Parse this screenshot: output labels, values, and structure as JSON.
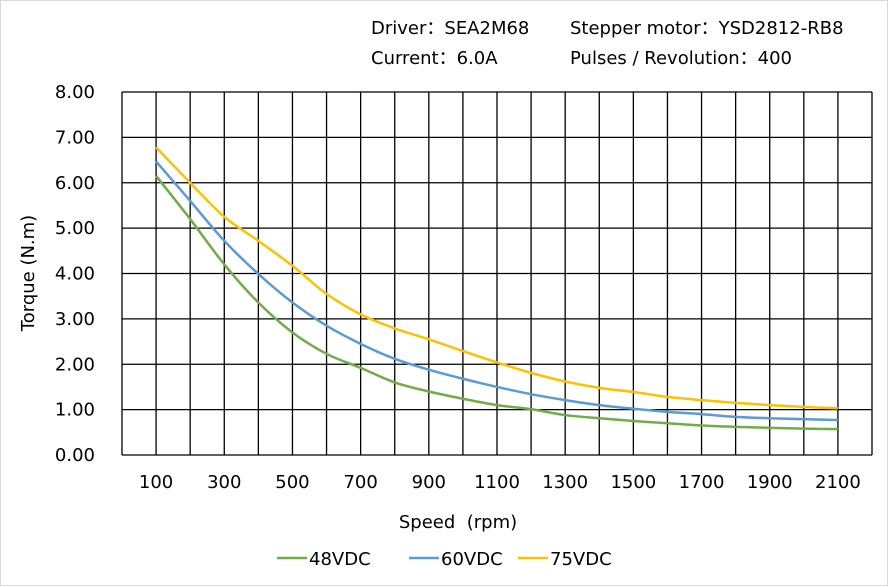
{
  "header": {
    "driver": "Driver：SEA2M68",
    "motor": "Stepper motor：YSD2812-RB8",
    "current": "Current：6.0A",
    "pulses": "Pulses / Revolution：400"
  },
  "chart_data": {
    "type": "line",
    "title": "",
    "xlabel": "Speed  (rpm)",
    "ylabel": "Torque (N.m)",
    "xlim": [
      0,
      2200
    ],
    "ylim": [
      0,
      8
    ],
    "grid": true,
    "legend_position": "bottom",
    "x_ticks": [
      "100",
      "300",
      "500",
      "700",
      "900",
      "1100",
      "1300",
      "1500",
      "1700",
      "1900",
      "2100"
    ],
    "y_ticks": [
      "0.00",
      "1.00",
      "2.00",
      "3.00",
      "4.00",
      "5.00",
      "6.00",
      "7.00",
      "8.00"
    ],
    "x": [
      100,
      200,
      300,
      400,
      500,
      600,
      700,
      800,
      900,
      1000,
      1100,
      1200,
      1300,
      1400,
      1500,
      1600,
      1700,
      1800,
      1900,
      2000,
      2100
    ],
    "series": [
      {
        "name": "48VDC",
        "color": "#70ad47",
        "values": [
          6.15,
          5.2,
          4.2,
          3.36,
          2.7,
          2.23,
          1.92,
          1.6,
          1.4,
          1.24,
          1.1,
          1.01,
          0.88,
          0.81,
          0.75,
          0.7,
          0.65,
          0.62,
          0.6,
          0.58,
          0.57
        ]
      },
      {
        "name": "60VDC",
        "color": "#5b9bd5",
        "values": [
          6.47,
          5.6,
          4.72,
          3.99,
          3.36,
          2.85,
          2.45,
          2.12,
          1.88,
          1.68,
          1.5,
          1.34,
          1.21,
          1.1,
          1.02,
          0.95,
          0.9,
          0.84,
          0.81,
          0.79,
          0.77
        ]
      },
      {
        "name": "75VDC",
        "color": "#ffc000",
        "values": [
          6.78,
          6.0,
          5.25,
          4.72,
          4.17,
          3.55,
          3.1,
          2.79,
          2.55,
          2.29,
          2.04,
          1.81,
          1.62,
          1.48,
          1.39,
          1.28,
          1.21,
          1.15,
          1.1,
          1.06,
          1.03
        ]
      }
    ]
  }
}
